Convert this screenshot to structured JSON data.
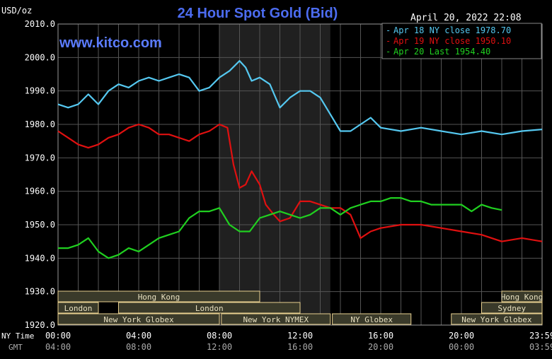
{
  "header": {
    "unit": "USD/oz",
    "title": "24 Hour Spot Gold (Bid)",
    "datetime": "April 20, 2022 22:08",
    "watermark": "www.kitco.com"
  },
  "colors": {
    "background": "#000000",
    "grid": "#555555",
    "title": "#4c6cf0",
    "watermark": "#5b7cff",
    "session_fill": "#3a3a2a",
    "session_border": "#e8d090",
    "series_apr18": "#55c8f0",
    "series_apr19": "#e01010",
    "series_apr20": "#20d020"
  },
  "time_rows": {
    "ny_label": "NY Time",
    "gmt_label": "GMT",
    "ny_ticks": [
      "00:00",
      "04:00",
      "08:00",
      "12:00",
      "16:00",
      "20:00",
      "23:59"
    ],
    "gmt_ticks": [
      "04:00",
      "08:00",
      "12:00",
      "16:00",
      "20:00",
      "00:00",
      "03:59"
    ]
  },
  "sessions": [
    {
      "label": "Hong Kong",
      "start": 0,
      "end": 10
    },
    {
      "label": "Hong Kong",
      "start": 22,
      "end": 24
    },
    {
      "label": "London",
      "start": 0,
      "end": 2
    },
    {
      "label": "London",
      "start": 3,
      "end": 12
    },
    {
      "label": "Sydney",
      "start": 21,
      "end": 24
    },
    {
      "label": "New York Globex",
      "start": 0,
      "end": 8
    },
    {
      "label": "New York NYMEX",
      "start": 8.1,
      "end": 13.5
    },
    {
      "label": "NY Globex",
      "start": 13.6,
      "end": 17.5
    },
    {
      "label": "New York Globex",
      "start": 19.5,
      "end": 24
    }
  ],
  "chart_data": {
    "type": "line",
    "title": "24 Hour Spot Gold (Bid)",
    "ylabel": "USD/oz",
    "xlabel": "NY Time",
    "ylim": [
      1920,
      2010
    ],
    "xlim": [
      0,
      24
    ],
    "y_ticks": [
      "2010.0",
      "2000.0",
      "1990.0",
      "1980.0",
      "1970.0",
      "1960.0",
      "1950.0",
      "1940.0",
      "1930.0",
      "1920.0"
    ],
    "highlight_range": [
      8,
      13.5
    ],
    "grid": true,
    "legend_position": "top-right",
    "series": [
      {
        "name": "Apr 18 NY close 1978.70",
        "color": "#55c8f0",
        "x": [
          0,
          0.5,
          1,
          1.5,
          2,
          2.5,
          3,
          3.5,
          4,
          4.5,
          5,
          5.5,
          6,
          6.5,
          7,
          7.5,
          8,
          8.5,
          9,
          9.3,
          9.6,
          10,
          10.5,
          11,
          11.5,
          12,
          12.5,
          13,
          13.5,
          14,
          14.5,
          15,
          15.5,
          16,
          17,
          18,
          19,
          20,
          21,
          22,
          23,
          24
        ],
        "y": [
          1986,
          1985,
          1986,
          1989,
          1986,
          1990,
          1992,
          1991,
          1993,
          1994,
          1993,
          1994,
          1995,
          1994,
          1990,
          1991,
          1994,
          1996,
          1999,
          1997,
          1993,
          1994,
          1992,
          1985,
          1988,
          1990,
          1990,
          1988,
          1983,
          1978,
          1978,
          1980,
          1982,
          1979,
          1978,
          1979,
          1978,
          1977,
          1978,
          1977,
          1978,
          1978.5
        ]
      },
      {
        "name": "Apr 19 NY close 1950.10",
        "color": "#e01010",
        "x": [
          0,
          0.5,
          1,
          1.5,
          2,
          2.5,
          3,
          3.5,
          4,
          4.5,
          5,
          5.5,
          6,
          6.5,
          7,
          7.5,
          8,
          8.4,
          8.7,
          9,
          9.3,
          9.6,
          10,
          10.3,
          10.7,
          11,
          11.5,
          12,
          12.5,
          13,
          13.5,
          14,
          14.5,
          15,
          15.5,
          16,
          17,
          18,
          19,
          20,
          21,
          22,
          23,
          24
        ],
        "y": [
          1978,
          1976,
          1974,
          1973,
          1974,
          1976,
          1977,
          1979,
          1980,
          1979,
          1977,
          1977,
          1976,
          1975,
          1977,
          1978,
          1980,
          1979,
          1968,
          1961,
          1962,
          1966,
          1962,
          1956,
          1953,
          1951,
          1952,
          1957,
          1957,
          1956,
          1955,
          1955,
          1953,
          1946,
          1948,
          1949,
          1950,
          1950,
          1949,
          1948,
          1947,
          1945,
          1946,
          1945
        ]
      },
      {
        "name": "Apr 20 Last 1954.40",
        "color": "#20d020",
        "x": [
          0,
          0.5,
          1,
          1.5,
          2,
          2.5,
          3,
          3.5,
          4,
          4.5,
          5,
          5.5,
          6,
          6.5,
          7,
          7.5,
          8,
          8.5,
          9,
          9.5,
          10,
          10.5,
          11,
          11.5,
          12,
          12.5,
          13,
          13.5,
          14,
          14.5,
          15,
          15.5,
          16,
          16.5,
          17,
          17.5,
          18,
          18.5,
          19,
          19.5,
          20,
          20.5,
          21,
          21.5,
          22
        ],
        "y": [
          1943,
          1943,
          1944,
          1946,
          1942,
          1940,
          1941,
          1943,
          1942,
          1944,
          1946,
          1947,
          1948,
          1952,
          1954,
          1954,
          1955,
          1950,
          1948,
          1948,
          1952,
          1953,
          1954,
          1953,
          1952,
          1953,
          1955,
          1955,
          1953,
          1955,
          1956,
          1957,
          1957,
          1958,
          1958,
          1957,
          1957,
          1956,
          1956,
          1956,
          1956,
          1954,
          1956,
          1955,
          1954.4
        ]
      }
    ]
  }
}
